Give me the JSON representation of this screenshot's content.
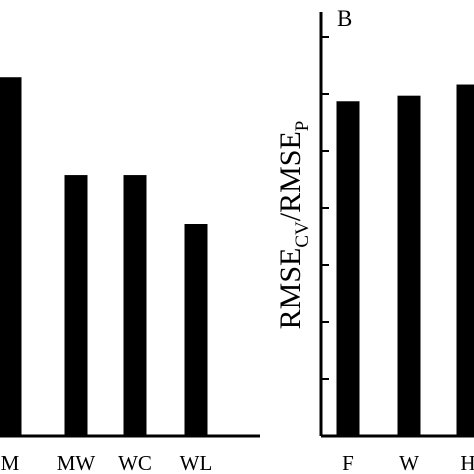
{
  "chart_data": [
    {
      "type": "bar",
      "panel": "",
      "categories": [
        "M",
        "MW",
        "WC",
        "WL"
      ],
      "values": [
        4.4,
        3.2,
        3.2,
        2.6
      ],
      "ylim": [
        0,
        5.2
      ],
      "ylabel": "",
      "grid": false,
      "bar_color": "#000000"
    },
    {
      "type": "bar",
      "panel": "B",
      "categories": [
        "F",
        "W",
        "H"
      ],
      "values": [
        6.0,
        6.1,
        6.3
      ],
      "ylim": [
        0,
        7.6
      ],
      "ylabel_main": "RMSE",
      "ylabel_sub1": "CV",
      "ylabel_sep": "/RMSE",
      "ylabel_sub2": "P",
      "grid": false,
      "bar_color": "#000000"
    }
  ]
}
